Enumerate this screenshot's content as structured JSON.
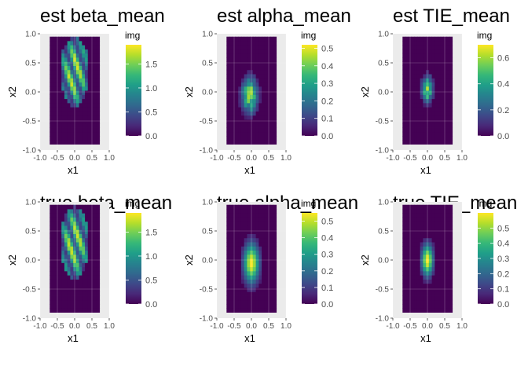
{
  "chart_data": [
    {
      "type": "heatmap",
      "title": "est beta_mean",
      "xlabel": "x1",
      "ylabel": "x2",
      "legend_title": "img",
      "xlim": [
        -1.0,
        1.0
      ],
      "ylim": [
        -1.0,
        1.0
      ],
      "x_ticks": [
        "-1.0",
        "-0.5",
        "0.0",
        "0.5",
        "1.0"
      ],
      "y_ticks": [
        "1.0",
        "0.5",
        "0.0",
        "-0.5",
        "-1.0"
      ],
      "colorbar_ticks": [
        "1.5",
        "1.0",
        "0.5",
        "0.0"
      ],
      "colorbar_range": [
        0.0,
        1.9
      ],
      "grid": true,
      "legend_position": "right",
      "colors": {
        "panel_bg": "#ebebeb",
        "low": "#440154",
        "high": "#fde725"
      },
      "field": {
        "shape": "banded-ellipse",
        "center": [
          0.0,
          0.35
        ],
        "radii": [
          0.42,
          0.6
        ],
        "peak": 1.9
      }
    },
    {
      "type": "heatmap",
      "title": "est alpha_mean",
      "xlabel": "x1",
      "ylabel": "x2",
      "legend_title": "img",
      "xlim": [
        -1.0,
        1.0
      ],
      "ylim": [
        -1.0,
        1.0
      ],
      "x_ticks": [
        "-1.0",
        "-0.5",
        "0.0",
        "0.5",
        "1.0"
      ],
      "y_ticks": [
        "1.0",
        "0.5",
        "0.0",
        "-0.5",
        "-1.0"
      ],
      "colorbar_ticks": [
        "0.5",
        "0.4",
        "0.3",
        "0.2",
        "0.1",
        "0.0"
      ],
      "colorbar_range": [
        0.0,
        0.52
      ],
      "grid": true,
      "legend_position": "right",
      "colors": {
        "panel_bg": "#ebebeb",
        "low": "#440154",
        "high": "#fde725"
      },
      "field": {
        "shape": "noisy-ellipse",
        "center": [
          -0.05,
          -0.05
        ],
        "radii": [
          0.32,
          0.42
        ],
        "peak": 0.52
      }
    },
    {
      "type": "heatmap",
      "title": "est TIE_mean",
      "xlabel": "x1",
      "ylabel": "x2",
      "legend_title": "img",
      "xlim": [
        -1.0,
        1.0
      ],
      "ylim": [
        -1.0,
        1.0
      ],
      "x_ticks": [
        "-1.0",
        "-0.5",
        "0.0",
        "0.5",
        "1.0"
      ],
      "y_ticks": [
        "1.0",
        "0.5",
        "0.0",
        "-0.5",
        "-1.0"
      ],
      "colorbar_ticks": [
        "0.6",
        "0.4",
        "0.2",
        "0.0"
      ],
      "colorbar_range": [
        0.0,
        0.7
      ],
      "grid": true,
      "legend_position": "right",
      "colors": {
        "panel_bg": "#ebebeb",
        "low": "#440154",
        "high": "#fde725"
      },
      "field": {
        "shape": "noisy-ellipse",
        "center": [
          0.0,
          0.05
        ],
        "radii": [
          0.22,
          0.3
        ],
        "peak": 0.7
      }
    },
    {
      "type": "heatmap",
      "title": "true beta_mean",
      "xlabel": "x1",
      "ylabel": "x2",
      "legend_title": "img",
      "xlim": [
        -1.0,
        1.0
      ],
      "ylim": [
        -1.0,
        1.0
      ],
      "x_ticks": [
        "-1.0",
        "-0.5",
        "0.0",
        "0.5",
        "1.0"
      ],
      "y_ticks": [
        "1.0",
        "0.5",
        "0.0",
        "-0.5",
        "-1.0"
      ],
      "colorbar_ticks": [
        "1.5",
        "1.0",
        "0.5",
        "0.0"
      ],
      "colorbar_range": [
        0.0,
        1.9
      ],
      "grid": true,
      "legend_position": "right",
      "colors": {
        "panel_bg": "#ebebeb",
        "low": "#440154",
        "high": "#fde725"
      },
      "field": {
        "shape": "banded-ellipse",
        "center": [
          0.0,
          0.3
        ],
        "radii": [
          0.42,
          0.62
        ],
        "peak": 1.9
      }
    },
    {
      "type": "heatmap",
      "title": "true alpha_mean",
      "xlabel": "x1",
      "ylabel": "x2",
      "legend_title": "img",
      "xlim": [
        -1.0,
        1.0
      ],
      "ylim": [
        -1.0,
        1.0
      ],
      "x_ticks": [
        "-1.0",
        "-0.5",
        "0.0",
        "0.5",
        "1.0"
      ],
      "y_ticks": [
        "1.0",
        "0.5",
        "0.0",
        "-0.5",
        "-1.0"
      ],
      "colorbar_ticks": [
        "0.5",
        "0.4",
        "0.3",
        "0.2",
        "0.1",
        "0.0"
      ],
      "colorbar_range": [
        0.0,
        0.55
      ],
      "grid": true,
      "legend_position": "right",
      "colors": {
        "panel_bg": "#ebebeb",
        "low": "#440154",
        "high": "#fde725"
      },
      "field": {
        "shape": "smooth-ellipse",
        "center": [
          0.0,
          -0.05
        ],
        "radii": [
          0.33,
          0.5
        ],
        "peak": 0.55
      }
    },
    {
      "type": "heatmap",
      "title": "true TIE_mean",
      "xlabel": "x1",
      "ylabel": "x2",
      "legend_title": "img",
      "xlim": [
        -1.0,
        1.0
      ],
      "ylim": [
        -1.0,
        1.0
      ],
      "x_ticks": [
        "-1.0",
        "-0.5",
        "0.0",
        "0.5",
        "1.0"
      ],
      "y_ticks": [
        "1.0",
        "0.5",
        "0.0",
        "-0.5",
        "-1.0"
      ],
      "colorbar_ticks": [
        "0.5",
        "0.4",
        "0.3",
        "0.2",
        "0.1",
        "0.0"
      ],
      "colorbar_range": [
        0.0,
        0.6
      ],
      "grid": true,
      "legend_position": "right",
      "colors": {
        "panel_bg": "#ebebeb",
        "low": "#440154",
        "high": "#fde725"
      },
      "field": {
        "shape": "smooth-ellipse",
        "center": [
          0.0,
          0.0
        ],
        "radii": [
          0.25,
          0.4
        ],
        "peak": 0.6
      }
    }
  ]
}
